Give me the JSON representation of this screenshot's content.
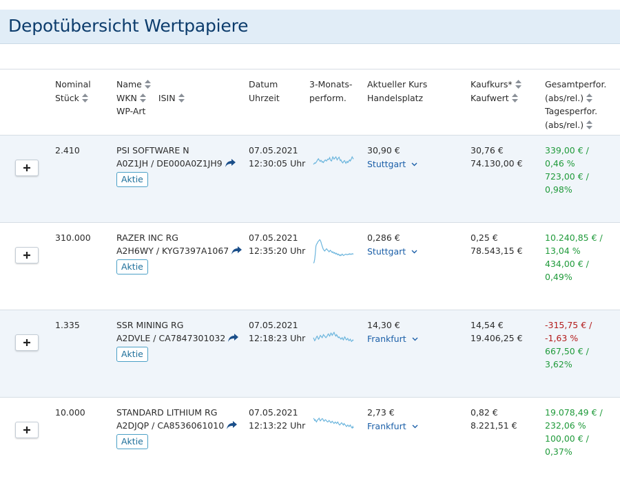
{
  "page": {
    "title": "Depotübersicht Wertpapiere"
  },
  "colors": {
    "accent": "#1b5fa8",
    "title": "#0c3c6c",
    "positive": "#1f9a3a",
    "negative": "#b31b1b",
    "spark": "#6bb5dd",
    "badge": "#4a9fc6"
  },
  "headers": {
    "nominal": "Nominal",
    "stueck": "Stück",
    "name": "Name",
    "wkn": "WKN",
    "isin": "ISIN",
    "wpart": "WP-Art",
    "datum": "Datum",
    "uhrzeit": "Uhrzeit",
    "perf1": "3-Monats-",
    "perf2": "perform.",
    "kurs": "Aktueller Kurs",
    "handelsplatz": "Handelsplatz",
    "kaufkurs": "Kaufkurs*",
    "kaufwert": "Kaufwert",
    "gesamt1": "Gesamtperfor.",
    "gesamt2": "(abs/rel.)",
    "tages1": "Tagesperfor.",
    "tages2": "(abs/rel.)"
  },
  "rows": [
    {
      "nominal": "2.410",
      "name": "PSI SOFTWARE N",
      "ids": "A0Z1JH / DE000A0Z1JH9",
      "type": "Aktie",
      "date": "07.05.2021",
      "time": "12:30:05 Uhr",
      "price": "30,90 €",
      "place": "Stuttgart",
      "buy_price": "30,76 €",
      "buy_value": "74.130,00 €",
      "total_abs": "339,00 € /",
      "total_rel": "0,46 %",
      "day_abs": "723,00 € /",
      "day_rel": "0,98%",
      "total_class": "pos",
      "day_class": "pos"
    },
    {
      "nominal": "310.000",
      "name": "RAZER INC RG",
      "ids": "A2H6WY / KYG7397A1067",
      "type": "Aktie",
      "date": "07.05.2021",
      "time": "12:35:20 Uhr",
      "price": "0,286 €",
      "place": "Stuttgart",
      "buy_price": "0,25 €",
      "buy_value": "78.543,15 €",
      "total_abs": "10.240,85 € /",
      "total_rel": "13,04 %",
      "day_abs": "434,00 € /",
      "day_rel": "0,49%",
      "total_class": "pos",
      "day_class": "pos"
    },
    {
      "nominal": "1.335",
      "name": "SSR MINING RG",
      "ids": "A2DVLE / CA7847301032",
      "type": "Aktie",
      "date": "07.05.2021",
      "time": "12:18:23 Uhr",
      "price": "14,30 €",
      "place": "Frankfurt",
      "buy_price": "14,54 €",
      "buy_value": "19.406,25 €",
      "total_abs": "-315,75 € /",
      "total_rel": "-1,63 %",
      "day_abs": "667,50 € /",
      "day_rel": "3,62%",
      "total_class": "neg",
      "day_class": "pos"
    },
    {
      "nominal": "10.000",
      "name": "STANDARD LITHIUM RG",
      "ids": "A2DJQP / CA8536061010",
      "type": "Aktie",
      "date": "07.05.2021",
      "time": "12:13:22 Uhr",
      "price": "2,73 €",
      "place": "Frankfurt",
      "buy_price": "0,82 €",
      "buy_value": "8.221,51 €",
      "total_abs": "19.078,49 € /",
      "total_rel": "232,06 %",
      "day_abs": "100,00 € /",
      "day_rel": "0,37%",
      "total_class": "pos",
      "day_class": "pos"
    }
  ],
  "sparklines": [
    [
      40,
      42,
      44,
      43,
      45,
      47,
      50,
      53,
      55,
      52,
      49,
      48,
      51,
      49,
      46,
      47,
      45,
      48,
      50,
      52,
      50,
      49,
      52,
      54,
      53,
      55,
      58,
      52,
      50,
      49,
      55,
      60,
      57,
      54,
      56,
      58,
      60,
      56,
      52,
      55,
      57,
      59,
      54,
      50,
      52,
      48,
      46,
      44,
      47,
      49,
      50,
      46,
      43,
      46,
      48,
      45,
      47,
      50,
      52,
      49,
      52,
      56,
      60,
      57,
      54
    ],
    [
      10,
      12,
      20,
      35,
      55,
      60,
      62,
      66,
      68,
      70,
      72,
      70,
      66,
      60,
      55,
      50,
      46,
      44,
      42,
      44,
      46,
      48,
      46,
      44,
      42,
      40,
      42,
      44,
      42,
      40,
      38,
      40,
      38,
      36,
      38,
      36,
      34,
      36,
      34,
      32,
      34,
      32,
      30,
      32,
      30,
      32,
      34,
      32,
      30,
      31,
      32,
      33,
      34,
      33,
      32,
      33,
      34,
      33,
      35,
      34,
      33,
      34,
      35,
      34,
      35
    ],
    [
      44,
      40,
      36,
      38,
      42,
      46,
      48,
      44,
      40,
      42,
      46,
      50,
      48,
      46,
      44,
      48,
      52,
      50,
      48,
      46,
      44,
      46,
      48,
      52,
      54,
      50,
      48,
      52,
      56,
      54,
      50,
      52,
      56,
      58,
      54,
      50,
      48,
      52,
      50,
      46,
      44,
      46,
      44,
      42,
      40,
      42,
      44,
      40,
      38,
      42,
      46,
      44,
      40,
      38,
      40,
      42,
      38,
      36,
      38,
      40,
      36,
      34,
      36,
      38,
      36
    ],
    [
      62,
      60,
      56,
      58,
      54,
      52,
      56,
      58,
      60,
      62,
      58,
      55,
      57,
      59,
      61,
      60,
      56,
      54,
      56,
      58,
      57,
      55,
      53,
      52,
      54,
      56,
      54,
      52,
      50,
      52,
      54,
      52,
      50,
      48,
      50,
      52,
      50,
      48,
      50,
      52,
      48,
      46,
      44,
      46,
      48,
      50,
      48,
      46,
      44,
      48,
      46,
      44,
      42,
      40,
      42,
      44,
      42,
      40,
      42,
      44,
      40,
      38,
      36,
      40,
      36
    ]
  ]
}
